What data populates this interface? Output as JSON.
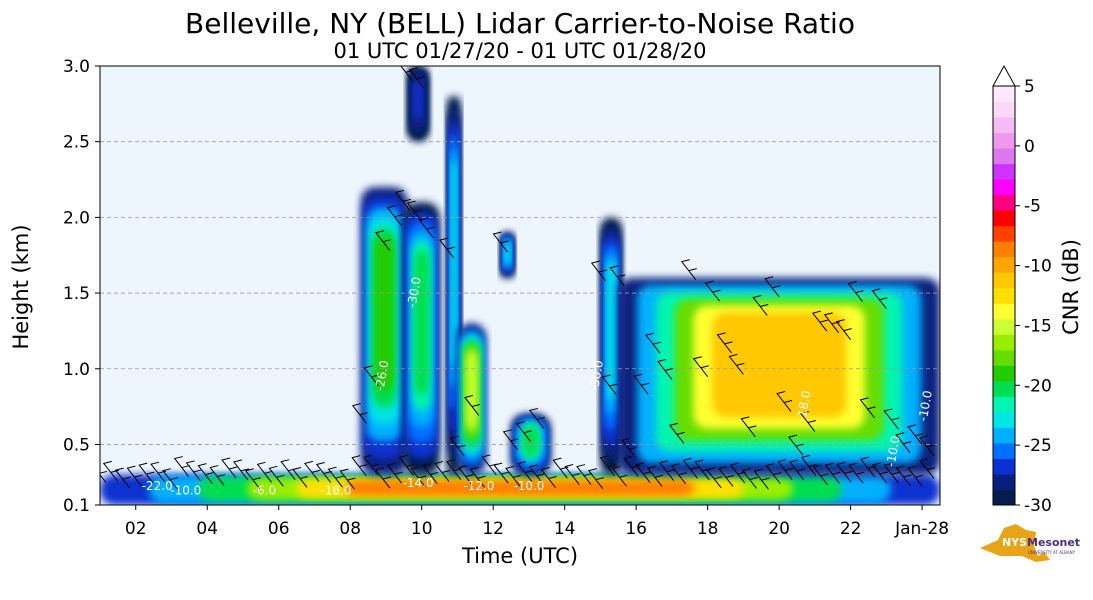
{
  "chart_data": {
    "type": "heatmap",
    "title": "Belleville, NY (BELL) Lidar Carrier-to-Noise Ratio",
    "subtitle": "01 UTC 01/27/20 - 01 UTC 01/28/20",
    "xlabel": "Time (UTC)",
    "ylabel": "Height (km)",
    "x_range_hours": [
      1,
      24.5
    ],
    "ylim": [
      0.1,
      3.0
    ],
    "x_ticks": [
      {
        "t": 2,
        "label": "02"
      },
      {
        "t": 4,
        "label": "04"
      },
      {
        "t": 6,
        "label": "06"
      },
      {
        "t": 8,
        "label": "08"
      },
      {
        "t": 10,
        "label": "10"
      },
      {
        "t": 12,
        "label": "12"
      },
      {
        "t": 14,
        "label": "14"
      },
      {
        "t": 16,
        "label": "16"
      },
      {
        "t": 18,
        "label": "18"
      },
      {
        "t": 20,
        "label": "20"
      },
      {
        "t": 22,
        "label": "22"
      },
      {
        "t": 24,
        "label": "Jan-28"
      }
    ],
    "y_ticks": [
      {
        "v": 0.1,
        "label": "0.1"
      },
      {
        "v": 0.5,
        "label": "0.5"
      },
      {
        "v": 1.0,
        "label": "1.0"
      },
      {
        "v": 1.5,
        "label": "1.5"
      },
      {
        "v": 2.0,
        "label": "2.0"
      },
      {
        "v": 2.5,
        "label": "2.5"
      },
      {
        "v": 3.0,
        "label": "3.0"
      }
    ],
    "grid": "horizontal dashed",
    "plot_background": "#eef6fd",
    "colorbar": {
      "label": "CNR (dB)",
      "min": -30,
      "max": 5,
      "ticks": [
        {
          "v": 5,
          "label": "5"
        },
        {
          "v": 0,
          "label": "0"
        },
        {
          "v": -5,
          "label": "-5"
        },
        {
          "v": -10,
          "label": "-10"
        },
        {
          "v": -15,
          "label": "-15"
        },
        {
          "v": -20,
          "label": "-20"
        },
        {
          "v": -25,
          "label": "-25"
        },
        {
          "v": -30,
          "label": "-30"
        }
      ],
      "colors": [
        "#061c4d",
        "#07207f",
        "#0a32d0",
        "#0070ff",
        "#00b0ff",
        "#00e5e5",
        "#00f5b0",
        "#00dd50",
        "#22cc00",
        "#66dd00",
        "#99ee00",
        "#ccff33",
        "#ffff33",
        "#ffe000",
        "#ffc800",
        "#ffa500",
        "#ff8000",
        "#ff4000",
        "#ff0000",
        "#ff0080",
        "#ff00ff",
        "#cc33ff",
        "#dd77ee",
        "#ee99ee",
        "#f5bbf5",
        "#fad8fa",
        "#fde8fd"
      ]
    },
    "contour_labels": [
      {
        "t": 2.6,
        "h": 0.2,
        "text": "-22.0"
      },
      {
        "t": 3.4,
        "h": 0.17,
        "text": "-10.0"
      },
      {
        "t": 5.6,
        "h": 0.17,
        "text": "-6.0"
      },
      {
        "t": 7.6,
        "h": 0.17,
        "text": "-18.0"
      },
      {
        "t": 9.9,
        "h": 0.22,
        "text": "-14.0"
      },
      {
        "t": 11.6,
        "h": 0.2,
        "text": "-12.0"
      },
      {
        "t": 13.0,
        "h": 0.2,
        "text": "-10.0"
      },
      {
        "t": 9.0,
        "h": 0.95,
        "text": "-26.0"
      },
      {
        "t": 9.9,
        "h": 1.5,
        "text": "-30.0"
      },
      {
        "t": 15.0,
        "h": 0.95,
        "text": "-30.0"
      },
      {
        "t": 20.8,
        "h": 0.75,
        "text": "-18.0"
      },
      {
        "t": 23.3,
        "h": 0.45,
        "text": "-10.0"
      },
      {
        "t": 24.2,
        "h": 0.75,
        "text": "-10.0"
      }
    ],
    "echo_regions": [
      {
        "t0": 1.0,
        "t1": 24.5,
        "h0": 0.1,
        "h1": 0.3,
        "peak": -8
      },
      {
        "t0": 8.3,
        "t1": 9.6,
        "h0": 0.3,
        "h1": 2.2,
        "peak": -18
      },
      {
        "t0": 9.5,
        "t1": 10.5,
        "h0": 0.3,
        "h1": 2.1,
        "peak": -20
      },
      {
        "t0": 9.6,
        "t1": 10.2,
        "h0": 2.5,
        "h1": 3.0,
        "peak": -27
      },
      {
        "t0": 10.7,
        "t1": 11.1,
        "h0": 0.3,
        "h1": 2.8,
        "peak": -22
      },
      {
        "t0": 11.0,
        "t1": 11.8,
        "h0": 0.3,
        "h1": 1.3,
        "peak": -15
      },
      {
        "t0": 12.2,
        "t1": 12.6,
        "h0": 1.6,
        "h1": 1.9,
        "peak": -22
      },
      {
        "t0": 12.5,
        "t1": 13.6,
        "h0": 0.3,
        "h1": 0.7,
        "peak": -20
      },
      {
        "t0": 15.0,
        "t1": 15.6,
        "h0": 0.3,
        "h1": 2.0,
        "peak": -22
      },
      {
        "t0": 15.5,
        "t1": 24.5,
        "h0": 0.3,
        "h1": 1.6,
        "peak": -10
      }
    ]
  },
  "logo": {
    "nys": "NYS",
    "mesonet": "Mesonet",
    "university": "UNIVERSITY AT ALBANY"
  }
}
